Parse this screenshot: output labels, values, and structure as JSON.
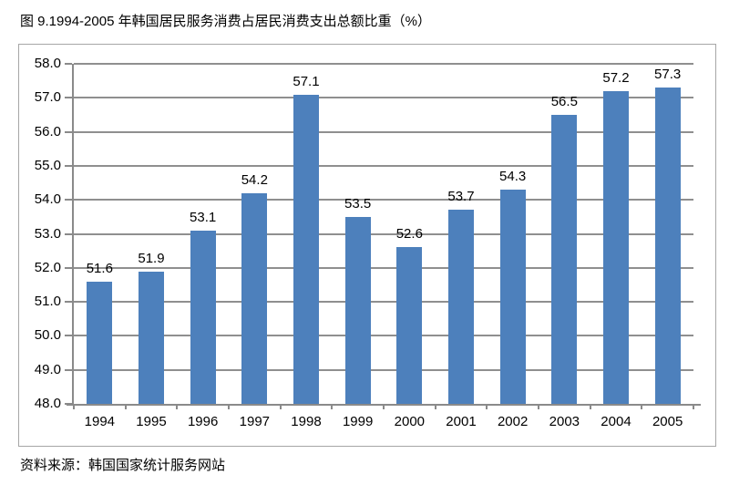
{
  "chart_data": {
    "type": "bar",
    "title": "图 9.1994-2005 年韩国居民服务消费占居民消费支出总额比重（%）",
    "source": "资料来源：韩国国家统计服务网站",
    "categories": [
      "1994",
      "1995",
      "1996",
      "1997",
      "1998",
      "1999",
      "2000",
      "2001",
      "2002",
      "2003",
      "2004",
      "2005"
    ],
    "values": [
      51.6,
      51.9,
      53.1,
      54.2,
      57.1,
      53.5,
      52.6,
      53.7,
      54.3,
      56.5,
      57.2,
      57.3
    ],
    "value_labels": [
      "51.6",
      "51.9",
      "53.1",
      "54.2",
      "57.1",
      "53.5",
      "52.6",
      "53.7",
      "54.3",
      "56.5",
      "57.2",
      "57.3"
    ],
    "ylim": [
      48.0,
      58.0
    ],
    "ytick_step": 1.0,
    "ytick_labels": [
      "58.0",
      "57.0",
      "56.0",
      "55.0",
      "54.0",
      "53.0",
      "52.0",
      "51.0",
      "50.0",
      "49.0",
      "48.0"
    ],
    "ytick_values": [
      58.0,
      57.0,
      56.0,
      55.0,
      54.0,
      53.0,
      52.0,
      51.0,
      50.0,
      49.0,
      48.0
    ],
    "grid": true,
    "legend": "none",
    "xlabel": "",
    "ylabel": "",
    "colors": {
      "bar": "#4d80bc",
      "gridline": "#8f8f8f",
      "axis": "#8a8a8a",
      "frame_border": "#a6a6a6",
      "text": "#000000"
    }
  }
}
